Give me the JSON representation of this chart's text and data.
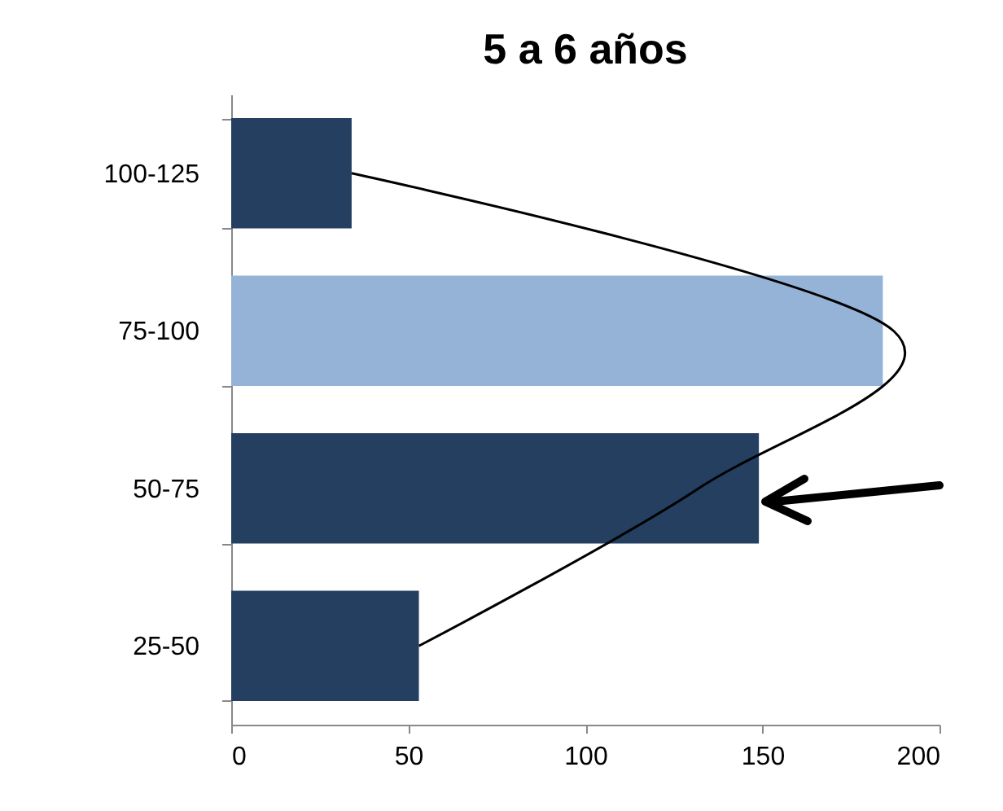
{
  "chart_data": {
    "type": "bar",
    "orientation": "horizontal",
    "title": "5 a 6 años",
    "categories": [
      "100-125",
      "75-100",
      "50-75",
      "25-50"
    ],
    "series": [
      {
        "colors": [
          "#243f60",
          "#95b3d7",
          "#243f60",
          "#243f60"
        ],
        "values": [
          34,
          184,
          149,
          53
        ]
      },
      {
        "type": "line",
        "color": "#000000",
        "values": [
          34,
          187,
          132,
          53
        ]
      }
    ],
    "xlim": [
      0,
      200
    ],
    "xticks": [
      0,
      50,
      100,
      150,
      200
    ],
    "grid": false
  }
}
